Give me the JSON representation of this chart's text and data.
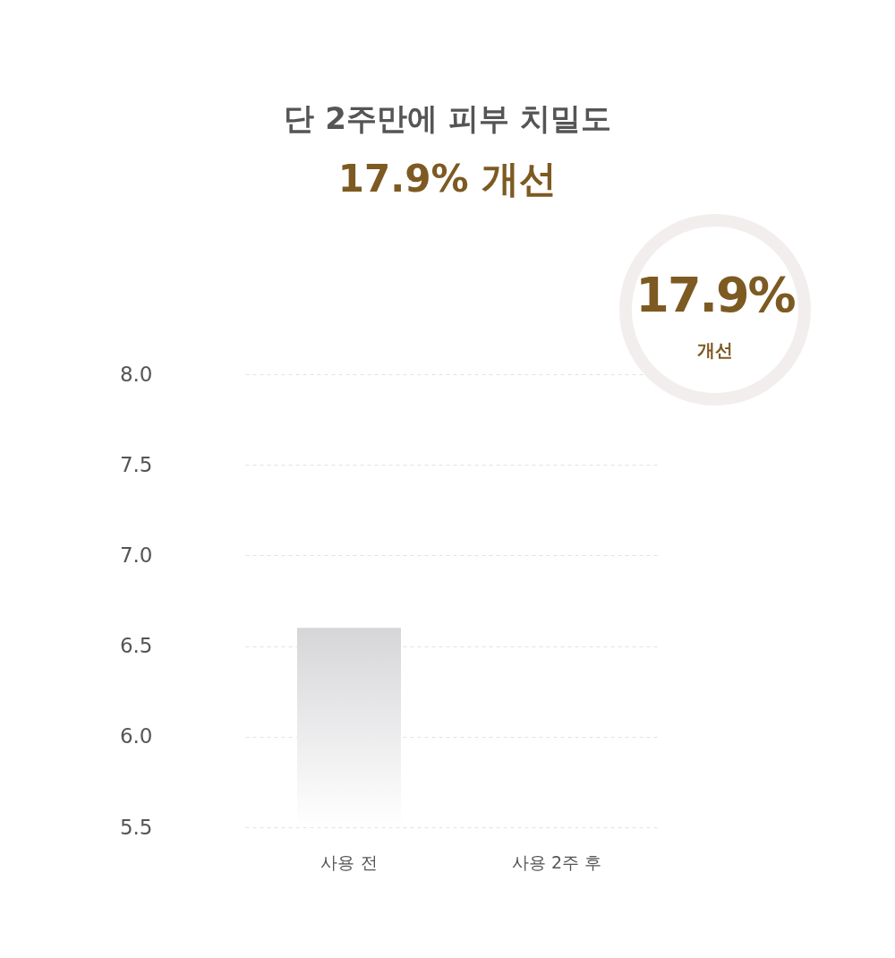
{
  "chart_data": {
    "type": "bar",
    "title": "단 2주만에 피부 치밀도",
    "subtitle": "17.9% 개선",
    "categories": [
      "사용 전",
      "사용 2주 후"
    ],
    "values": [
      6.6,
      null
    ],
    "color": "#d6d6d9",
    "ylim": [
      5.5,
      8.0
    ],
    "yticks": [
      {
        "value": 5.5,
        "label": "5.5"
      },
      {
        "value": 6,
        "label": "6.0"
      },
      {
        "value": 6.5,
        "label": "6.5"
      },
      {
        "value": 7,
        "label": "7.0"
      },
      {
        "value": 7.5,
        "label": "7.5"
      },
      {
        "value": 8,
        "label": "8.0"
      }
    ],
    "grid": "y",
    "annotations": [
      "17.9%",
      "개선"
    ]
  }
}
